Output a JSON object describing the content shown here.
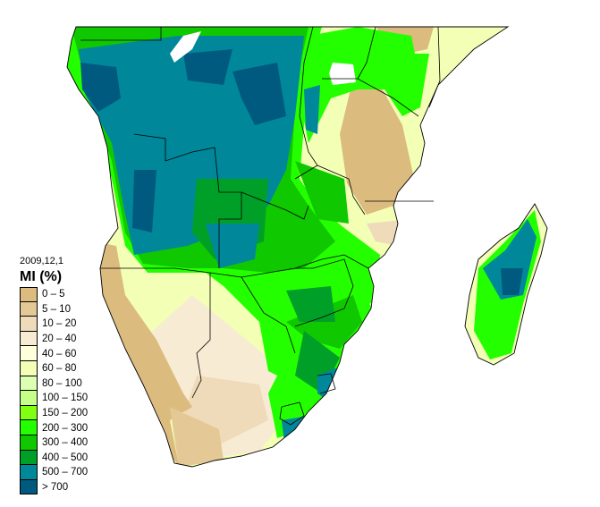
{
  "legend": {
    "date": "2009,12,1",
    "title": "MI (%)",
    "classes": [
      {
        "label": "0 – 5",
        "color": "#dcbb7e"
      },
      {
        "label": "5 – 10",
        "color": "#e4c996"
      },
      {
        "label": "10 – 20",
        "color": "#efdbba"
      },
      {
        "label": "20 – 40",
        "color": "#f8ebd4"
      },
      {
        "label": "40 – 60",
        "color": "#ffffdc"
      },
      {
        "label": "60 – 80",
        "color": "#f2ffb4"
      },
      {
        "label": "80 – 100",
        "color": "#dcffb4"
      },
      {
        "label": "100 – 150",
        "color": "#c4ff88"
      },
      {
        "label": "150 – 200",
        "color": "#80ff10"
      },
      {
        "label": "200 – 300",
        "color": "#24ff00"
      },
      {
        "label": "300 – 400",
        "color": "#10c800"
      },
      {
        "label": "400 – 500",
        "color": "#00a028"
      },
      {
        "label": "500 – 700",
        "color": "#00889a"
      },
      {
        "label": "> 700",
        "color": "#005a80"
      }
    ]
  }
}
